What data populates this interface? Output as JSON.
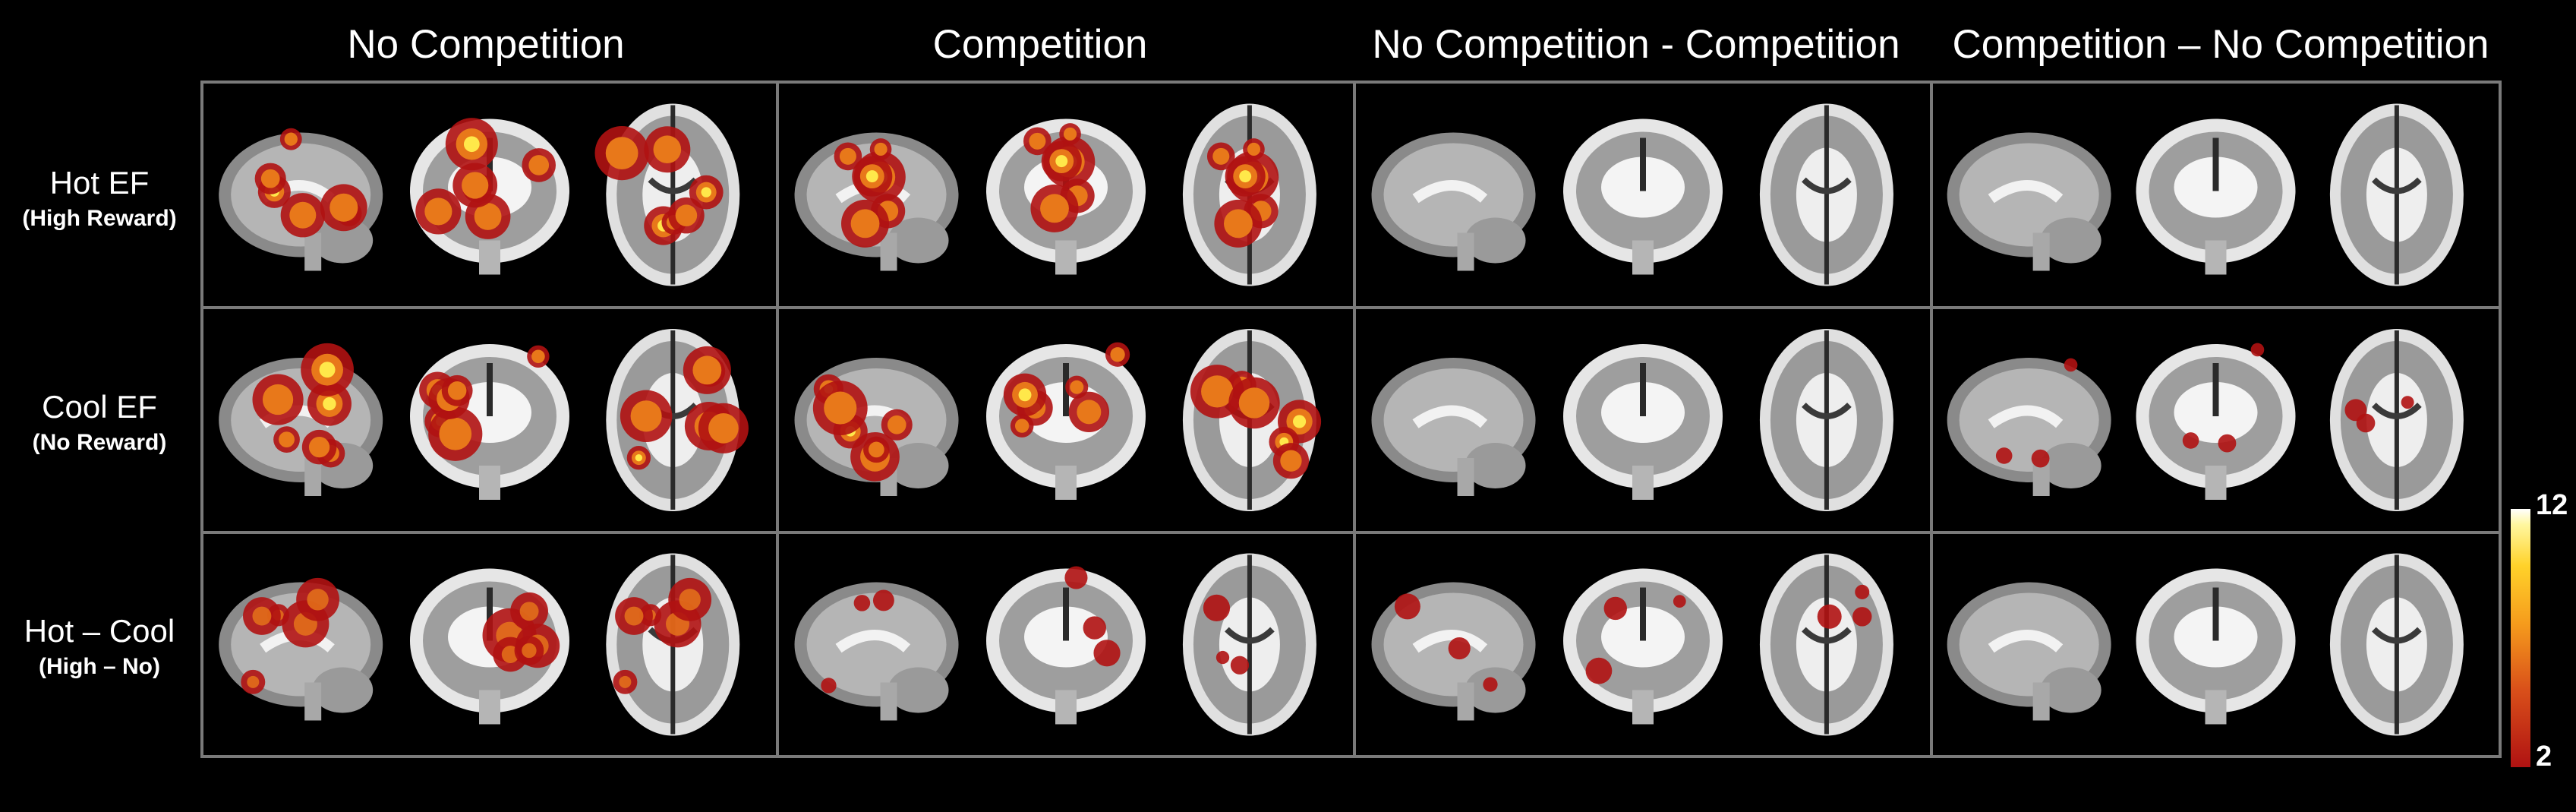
{
  "columns": [
    {
      "title": "No Competition"
    },
    {
      "title": "Competition"
    },
    {
      "title": "No Competition - Competition"
    },
    {
      "title": "Competition – No Competition"
    }
  ],
  "rows": [
    {
      "label": "Hot EF",
      "sublabel": "(High Reward)"
    },
    {
      "label": "Cool EF",
      "sublabel": "(No Reward)"
    },
    {
      "label": "Hot – Cool",
      "sublabel": "(High – No)"
    }
  ],
  "colorbar": {
    "max_label": "12",
    "min_label": "2",
    "colors": {
      "low": "#b01212",
      "mid": "#e8781a",
      "high": "#ffe84a",
      "top": "#ffffff"
    }
  },
  "activation": [
    [
      "strong",
      "strong",
      "none",
      "none"
    ],
    [
      "strong",
      "strong",
      "none",
      "sparse"
    ],
    [
      "medium",
      "sparse",
      "sparse",
      "none"
    ]
  ]
}
